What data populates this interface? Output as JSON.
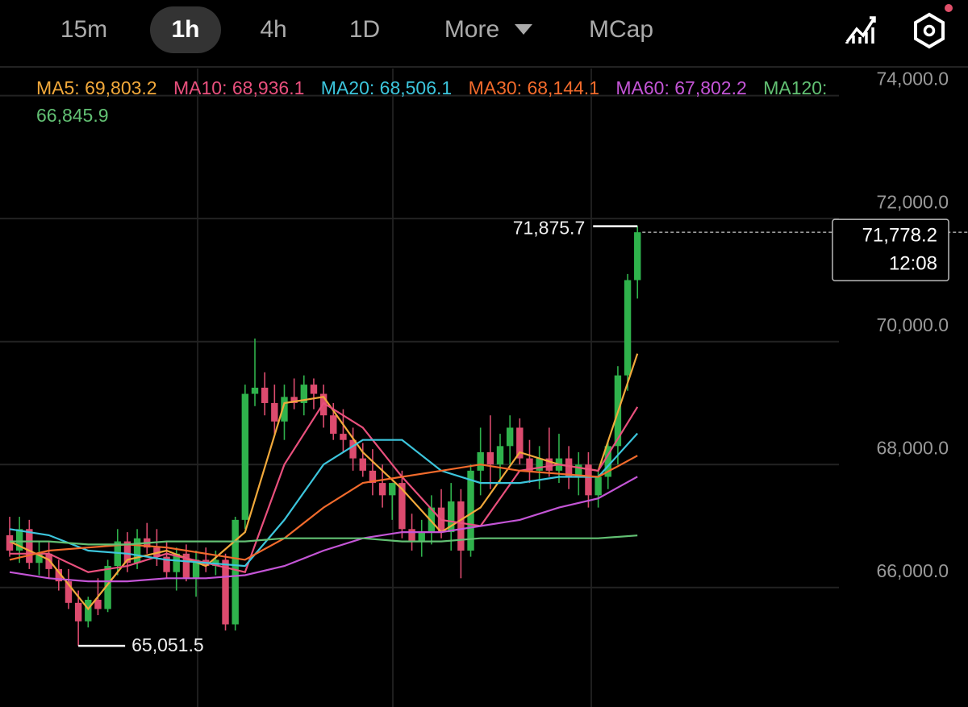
{
  "toolbar": {
    "tabs": [
      "15m",
      "1h",
      "4h",
      "1D",
      "More",
      "MCap"
    ],
    "active": 1
  },
  "chart_data": {
    "type": "candlestick",
    "categories": [
      null,
      null,
      null,
      null,
      null,
      null,
      null,
      null,
      null,
      null,
      null,
      null,
      null,
      null,
      null,
      null,
      null,
      null,
      null,
      null,
      null,
      null,
      null,
      null,
      null,
      null,
      null,
      null,
      null,
      null,
      null,
      null,
      null,
      null,
      null,
      null,
      null,
      null,
      null,
      null,
      null,
      null,
      null,
      null,
      null,
      null,
      null,
      null,
      null,
      null,
      null,
      null,
      null,
      null,
      null,
      null,
      null,
      null,
      null,
      null,
      null,
      null,
      null,
      null,
      null
    ],
    "open": [
      66850,
      66600,
      66950,
      66400,
      66550,
      66300,
      66100,
      65750,
      65450,
      65800,
      65650,
      66350,
      66750,
      66400,
      66800,
      66650,
      66500,
      66250,
      66550,
      66150,
      66450,
      66350,
      66450,
      65400,
      67100,
      69150,
      69250,
      69000,
      68700,
      69100,
      69000,
      69300,
      69150,
      68800,
      68500,
      68400,
      68100,
      67900,
      67700,
      67500,
      67700,
      66950,
      66750,
      66900,
      67300,
      66900,
      67400,
      66600,
      67900,
      68200,
      68000,
      68300,
      68600,
      68100,
      67900,
      68100,
      67900,
      68100,
      67800,
      68000,
      67500,
      67800,
      68300,
      69450,
      71000
    ],
    "high": [
      67150,
      67150,
      67100,
      66750,
      66750,
      66450,
      66300,
      65950,
      65850,
      66150,
      66450,
      66950,
      66900,
      66950,
      67050,
      66950,
      66750,
      66650,
      66700,
      66600,
      66650,
      66600,
      66550,
      67150,
      69300,
      70050,
      69500,
      69300,
      69300,
      69400,
      69450,
      69400,
      69300,
      69000,
      68900,
      68600,
      68350,
      68250,
      68000,
      67700,
      67900,
      67200,
      67100,
      67500,
      67600,
      67700,
      67600,
      68000,
      68600,
      68800,
      68500,
      68800,
      68750,
      68400,
      68300,
      68600,
      68500,
      68300,
      68200,
      68200,
      67900,
      68400,
      69600,
      71100,
      71875.7
    ],
    "low": [
      66500,
      66400,
      66300,
      66200,
      66150,
      65950,
      65650,
      65051.5,
      65350,
      65550,
      65600,
      66200,
      66250,
      66300,
      66550,
      66350,
      66150,
      65950,
      66100,
      65850,
      66250,
      66200,
      65300,
      65300,
      66950,
      68950,
      68800,
      68500,
      68400,
      68900,
      68800,
      68900,
      68600,
      68400,
      68200,
      67900,
      67800,
      67500,
      67300,
      67100,
      66800,
      66600,
      66500,
      66700,
      66800,
      66600,
      66150,
      66500,
      67500,
      67600,
      67700,
      68000,
      68000,
      67700,
      67600,
      67800,
      67700,
      67600,
      67500,
      67300,
      67300,
      67600,
      68000,
      69200,
      70700
    ],
    "close": [
      66600,
      66950,
      66400,
      66550,
      66300,
      66100,
      65750,
      65450,
      65800,
      65650,
      66350,
      66750,
      66400,
      66800,
      66650,
      66500,
      66250,
      66550,
      66150,
      66450,
      66350,
      66450,
      65400,
      67100,
      69150,
      69250,
      69000,
      68700,
      69100,
      69000,
      69300,
      69150,
      68800,
      68500,
      68400,
      68100,
      67900,
      67700,
      67500,
      67700,
      66950,
      66750,
      66900,
      67300,
      66900,
      67400,
      66600,
      67900,
      68200,
      68000,
      68300,
      68600,
      68100,
      67900,
      68100,
      67900,
      68100,
      67800,
      68000,
      67500,
      67800,
      68300,
      69450,
      71000,
      71778.2
    ],
    "up_color": "#2fb24c",
    "down_color": "#dc4b6e",
    "series": [
      {
        "name": "MA5: 69,803.2",
        "color": "#f2a93b",
        "x": [
          0,
          4,
          8,
          12,
          16,
          20,
          24,
          28,
          32,
          36,
          40,
          44,
          48,
          52,
          56,
          60,
          64
        ],
        "values": [
          66750,
          66450,
          65650,
          66450,
          66600,
          66350,
          66900,
          69000,
          69100,
          68200,
          67600,
          66900,
          67300,
          68200,
          68000,
          67900,
          69803.2
        ]
      },
      {
        "name": "MA10: 68,936.1",
        "color": "#e9507d",
        "x": [
          0,
          4,
          8,
          12,
          16,
          20,
          24,
          28,
          32,
          36,
          40,
          44,
          48,
          52,
          56,
          60,
          64
        ],
        "values": [
          66550,
          66550,
          66250,
          66350,
          66550,
          66400,
          66250,
          68000,
          69000,
          68600,
          67800,
          67100,
          67000,
          67900,
          68000,
          67900,
          68936.1
        ]
      },
      {
        "name": "MA20: 68,506.1",
        "color": "#3cc5dc",
        "x": [
          0,
          4,
          8,
          12,
          16,
          20,
          24,
          28,
          32,
          36,
          40,
          44,
          48,
          52,
          56,
          60,
          64
        ],
        "values": [
          66950,
          66850,
          66600,
          66550,
          66450,
          66400,
          66350,
          67100,
          68000,
          68400,
          68400,
          67900,
          67700,
          67700,
          67800,
          67800,
          68506.1
        ]
      },
      {
        "name": "MA30: 68,144.1",
        "color": "#f26b2c",
        "x": [
          0,
          4,
          8,
          12,
          16,
          20,
          24,
          28,
          32,
          36,
          40,
          44,
          48,
          52,
          56,
          60,
          64
        ],
        "values": [
          66450,
          66600,
          66650,
          66700,
          66650,
          66550,
          66450,
          66800,
          67300,
          67700,
          67800,
          67900,
          68000,
          67900,
          67850,
          67800,
          68144.1
        ]
      },
      {
        "name": "MA60: 67,802.2",
        "color": "#c455d6",
        "x": [
          0,
          4,
          8,
          12,
          16,
          20,
          24,
          28,
          32,
          36,
          40,
          44,
          48,
          52,
          56,
          60,
          64
        ],
        "values": [
          66250,
          66150,
          66100,
          66100,
          66150,
          66150,
          66200,
          66350,
          66600,
          66800,
          66900,
          66900,
          67000,
          67100,
          67300,
          67450,
          67802.2
        ]
      },
      {
        "name": "MA120: 66,845.9",
        "color": "#62c073",
        "x": [
          0,
          4,
          8,
          12,
          16,
          20,
          24,
          28,
          32,
          36,
          40,
          44,
          48,
          52,
          56,
          60,
          64
        ],
        "values": [
          66750,
          66750,
          66700,
          66700,
          66750,
          66750,
          66750,
          66800,
          66800,
          66800,
          66750,
          66750,
          66800,
          66800,
          66800,
          66800,
          66845.9
        ]
      }
    ],
    "ylim": [
      64056,
      75556
    ],
    "yticks": [
      {
        "value": 66000,
        "label": "66,000.0"
      },
      {
        "value": 68000,
        "label": "68,000.0"
      },
      {
        "value": 70000,
        "label": "70,000.0"
      },
      {
        "value": 72000,
        "label": "72,000.0"
      },
      {
        "value": 74000,
        "label": "74,000.0"
      }
    ],
    "grid": true,
    "annotations": [
      {
        "value": 71875.7,
        "label": "71,875.7"
      },
      {
        "value": 65051.5,
        "label": "65,051.5"
      }
    ],
    "last_price": {
      "value": 71778.2,
      "label": "71,778.2"
    },
    "countdown": "12:08"
  }
}
